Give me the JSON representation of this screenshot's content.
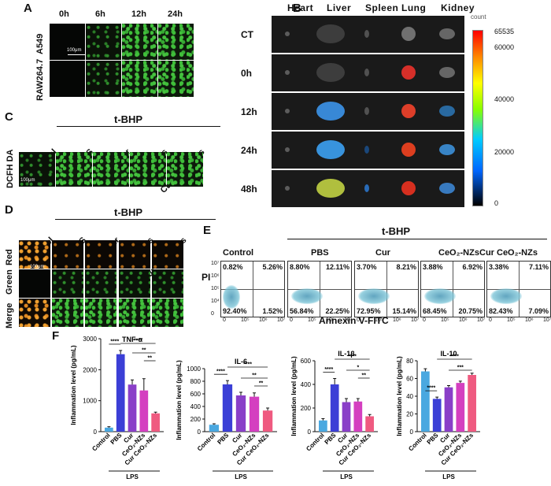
{
  "panel_letters": {
    "a": "A",
    "b": "B",
    "c": "C",
    "d": "D",
    "e": "E",
    "f": "F"
  },
  "panelA": {
    "times": [
      "0h",
      "6h",
      "12h",
      "24h"
    ],
    "rows": [
      "A549",
      "RAW264.7"
    ],
    "scale": "100μm"
  },
  "panelB": {
    "organs": [
      "Heart",
      "Liver",
      "Spleen",
      "Lung",
      "Kidney"
    ],
    "rows": [
      "CT",
      "0h",
      "12h",
      "24h",
      "48h"
    ],
    "colorbar": {
      "title": "count",
      "ticks": [
        "65535",
        "60000",
        "40000",
        "20000",
        "0"
      ]
    }
  },
  "panelC": {
    "group": "t-BHP",
    "groups": [
      "Control",
      "PBS",
      "Cur",
      "CeO₂-NZs",
      "Cur CeO₂-NZs"
    ],
    "row": "DCFH DA",
    "scale": "100μm"
  },
  "panelD": {
    "group": "t-BHP",
    "groups": [
      "Control",
      "PBS",
      "Cur",
      "CeO₂-NZs",
      "Cur CeO₂-NZs"
    ],
    "rows": [
      "Red",
      "Green",
      "Merge"
    ],
    "scale": "100μm"
  },
  "panelE": {
    "group": "t-BHP",
    "groups": [
      "Control",
      "PBS",
      "Cur",
      "CeO₂-NZs",
      "Cur CeO₂-NZs"
    ],
    "ylabel": "PI",
    "xlabel": "Annexin V-FITC",
    "ticks": [
      "0",
      "10⁵",
      "10⁶",
      "10⁷"
    ],
    "yticks": [
      "10⁷",
      "10⁶",
      "10⁵",
      "10⁴",
      "0"
    ],
    "quadrants": [
      {
        "ul": "0.82%",
        "ur": "5.26%",
        "ll": "92.40%",
        "lr": "1.52%"
      },
      {
        "ul": "8.80%",
        "ur": "12.11%",
        "ll": "56.84%",
        "lr": "22.25%"
      },
      {
        "ul": "3.70%",
        "ur": "8.21%",
        "ll": "72.95%",
        "lr": "15.14%"
      },
      {
        "ul": "3.88%",
        "ur": "6.92%",
        "ll": "68.45%",
        "lr": "20.75%"
      },
      {
        "ul": "3.38%",
        "ur": "7.11%",
        "ll": "82.43%",
        "lr": "7.09%"
      }
    ]
  },
  "chart_data": [
    {
      "type": "bar",
      "title": "TNF-α",
      "ylabel": "Inflammation level (pg/mL)",
      "xlabel": "LPS",
      "categories": [
        "Control",
        "PBS",
        "Cur",
        "CeO₂-NZs",
        "Cur CeO₂-NZs"
      ],
      "values": [
        130,
        2500,
        1520,
        1330,
        590
      ],
      "errors": [
        30,
        120,
        150,
        380,
        40
      ],
      "ylim": [
        0,
        3000
      ],
      "yticks": [
        0,
        1000,
        2000,
        3000
      ],
      "sig": [
        "****",
        "****",
        "**",
        "**"
      ],
      "colors": [
        "#4aa8e0",
        "#3b3fd6",
        "#8a3fc8",
        "#d43fc0",
        "#ef5a80"
      ]
    },
    {
      "type": "bar",
      "title": "IL-6",
      "ylabel": "Inflammation level (pg/mL)",
      "xlabel": "LPS",
      "categories": [
        "Control",
        "PBS",
        "Cur",
        "CeO₂-NZs",
        "Cur CeO₂-NZs"
      ],
      "values": [
        110,
        750,
        575,
        555,
        335
      ],
      "errors": [
        15,
        60,
        50,
        60,
        40
      ],
      "ylim": [
        0,
        1000
      ],
      "yticks": [
        0,
        200,
        400,
        600,
        800,
        1000
      ],
      "sig": [
        "****",
        "****",
        "**",
        "**"
      ],
      "colors": [
        "#4aa8e0",
        "#3b3fd6",
        "#8a3fc8",
        "#d43fc0",
        "#ef5a80"
      ]
    },
    {
      "type": "bar",
      "title": "IL-1β",
      "ylabel": "Inflammation level (pg/mL)",
      "xlabel": "LPS",
      "categories": [
        "Control",
        "PBS",
        "Cur",
        "CeO₂-NZs",
        "Cur CeO₂-NZs"
      ],
      "values": [
        95,
        400,
        250,
        255,
        130
      ],
      "errors": [
        15,
        50,
        30,
        25,
        15
      ],
      "ylim": [
        0,
        600
      ],
      "yticks": [
        0,
        200,
        400,
        600
      ],
      "sig": [
        "****",
        "****",
        "*",
        "**"
      ],
      "colors": [
        "#4aa8e0",
        "#3b3fd6",
        "#8a3fc8",
        "#d43fc0",
        "#ef5a80"
      ]
    },
    {
      "type": "bar",
      "title": "IL-10",
      "ylabel": "Inflammation level (pg/mL)",
      "xlabel": "LPS",
      "categories": [
        "Control",
        "PBS",
        "Cur",
        "CeO₂-NZs",
        "Cur CeO₂-NZs"
      ],
      "values": [
        68,
        37,
        50,
        55,
        64
      ],
      "errors": [
        3,
        2,
        2,
        2,
        2
      ],
      "ylim": [
        0,
        80
      ],
      "yticks": [
        0,
        20,
        40,
        60,
        80
      ],
      "sig": [
        "****",
        "****",
        "***"
      ],
      "colors": [
        "#4aa8e0",
        "#3b3fd6",
        "#8a3fc8",
        "#d43fc0",
        "#ef5a80"
      ]
    }
  ]
}
